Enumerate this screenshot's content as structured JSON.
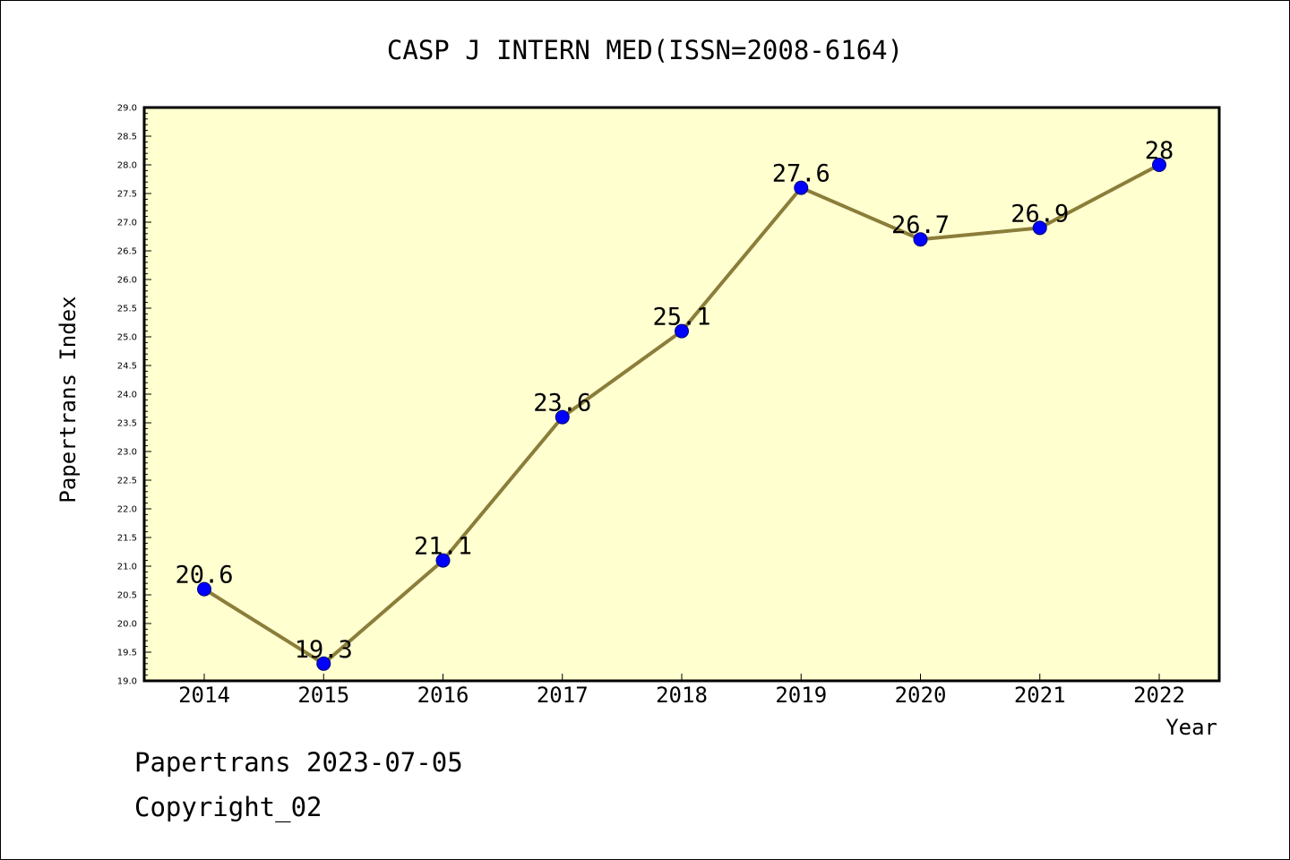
{
  "chart_data": {
    "type": "line",
    "title": "CASP J INTERN MED(ISSN=2008-6164)",
    "xlabel": "Year",
    "ylabel": "Papertrans Index",
    "categories": [
      "2014",
      "2015",
      "2016",
      "2017",
      "2018",
      "2019",
      "2020",
      "2021",
      "2022"
    ],
    "series": [
      {
        "values": [
          20.6,
          19.3,
          21.1,
          23.6,
          25.1,
          27.6,
          26.7,
          26.9,
          28
        ],
        "point_labels": [
          "20.6",
          "19.3",
          "21.1",
          "23.6",
          "25.1",
          "27.6",
          "26.7",
          "26.9",
          "28"
        ]
      }
    ],
    "ylim": [
      19.0,
      29.0
    ],
    "y_ticks": [
      "19.0",
      "19.5",
      "20.0",
      "20.5",
      "21.0",
      "21.5",
      "22.0",
      "22.5",
      "23.0",
      "23.5",
      "24.0",
      "24.5",
      "25.0",
      "25.5",
      "26.0",
      "26.5",
      "27.0",
      "27.5",
      "28.0",
      "28.5",
      "29.0"
    ],
    "grid": false,
    "colors": {
      "plot_background": "#ffffd0",
      "line": "#8b7d3a",
      "marker": "#0000ff"
    }
  },
  "footer": {
    "line1": "Papertrans 2023-07-05",
    "line2": "Copyright_02"
  }
}
